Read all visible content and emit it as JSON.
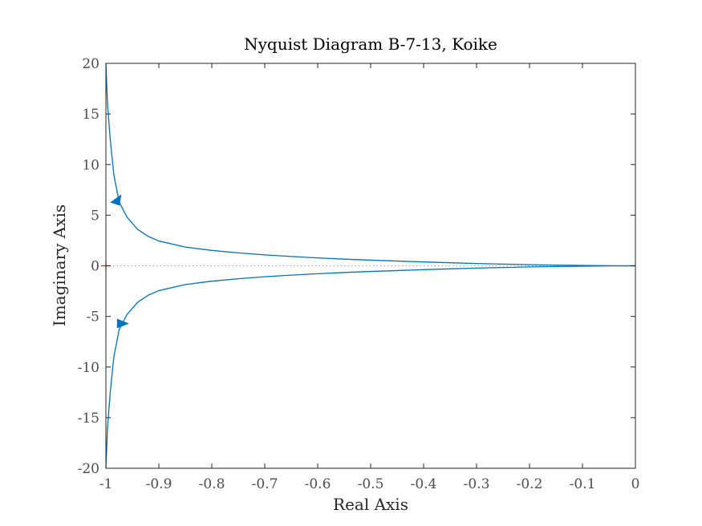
{
  "chart_data": {
    "type": "line",
    "title": "Nyquist Diagram B-7-13, Koike",
    "xlabel": "Real Axis",
    "ylabel": "Imaginary Axis",
    "xlim": [
      -1,
      0
    ],
    "ylim": [
      -20,
      20
    ],
    "xticks": [
      -1,
      -0.9,
      -0.8,
      -0.7,
      -0.6,
      -0.5,
      -0.4,
      -0.3,
      -0.2,
      -0.1,
      0
    ],
    "xtick_labels": [
      "-1",
      "-0.9",
      "-0.8",
      "-0.7",
      "-0.6",
      "-0.5",
      "-0.4",
      "-0.3",
      "-0.2",
      "-0.1",
      "0"
    ],
    "yticks": [
      -20,
      -15,
      -10,
      -5,
      0,
      5,
      10,
      15,
      20
    ],
    "ytick_labels": [
      "-20",
      "-15",
      "-10",
      "-5",
      "0",
      "5",
      "10",
      "15",
      "20"
    ],
    "grid": false,
    "series": [
      {
        "color": "#0072BD",
        "x": [
          -1.0,
          -0.997,
          -0.992,
          -0.985,
          -0.975,
          -0.96,
          -0.94,
          -0.92,
          -0.9,
          -0.85,
          -0.8,
          -0.75,
          -0.7,
          -0.65,
          -0.6,
          -0.55,
          -0.5,
          -0.45,
          -0.4,
          -0.35,
          -0.3,
          -0.25,
          -0.2,
          -0.15,
          -0.1,
          -0.05,
          0.0
        ],
        "y": [
          20.0,
          16.0,
          12.6,
          9.0,
          6.3,
          4.8,
          3.6,
          2.9,
          2.45,
          1.85,
          1.52,
          1.28,
          1.08,
          0.92,
          0.78,
          0.66,
          0.56,
          0.47,
          0.38,
          0.3,
          0.23,
          0.17,
          0.11,
          0.07,
          0.04,
          0.01,
          0.0
        ]
      },
      {
        "color": "#0072BD",
        "x": [
          -1.0,
          -0.997,
          -0.992,
          -0.985,
          -0.975,
          -0.96,
          -0.94,
          -0.92,
          -0.9,
          -0.85,
          -0.8,
          -0.75,
          -0.7,
          -0.65,
          -0.6,
          -0.55,
          -0.5,
          -0.45,
          -0.4,
          -0.35,
          -0.3,
          -0.25,
          -0.2,
          -0.15,
          -0.1,
          -0.05,
          0.0
        ],
        "y": [
          -20.0,
          -16.0,
          -12.6,
          -9.0,
          -6.3,
          -4.8,
          -3.6,
          -2.9,
          -2.45,
          -1.85,
          -1.52,
          -1.28,
          -1.08,
          -0.92,
          -0.78,
          -0.66,
          -0.56,
          -0.47,
          -0.38,
          -0.3,
          -0.23,
          -0.17,
          -0.11,
          -0.07,
          -0.04,
          -0.01,
          0.0
        ]
      }
    ],
    "arrows": [
      {
        "x": -0.98,
        "y": 6.5,
        "direction": "down-left"
      },
      {
        "x": -0.97,
        "y": -5.7,
        "direction": "right"
      }
    ],
    "critical_point": {
      "x": -1,
      "y": 0,
      "color": "#FF0000"
    },
    "zero_line": {
      "y": 0,
      "style": "dotted",
      "color": "#AAAAAA"
    }
  }
}
